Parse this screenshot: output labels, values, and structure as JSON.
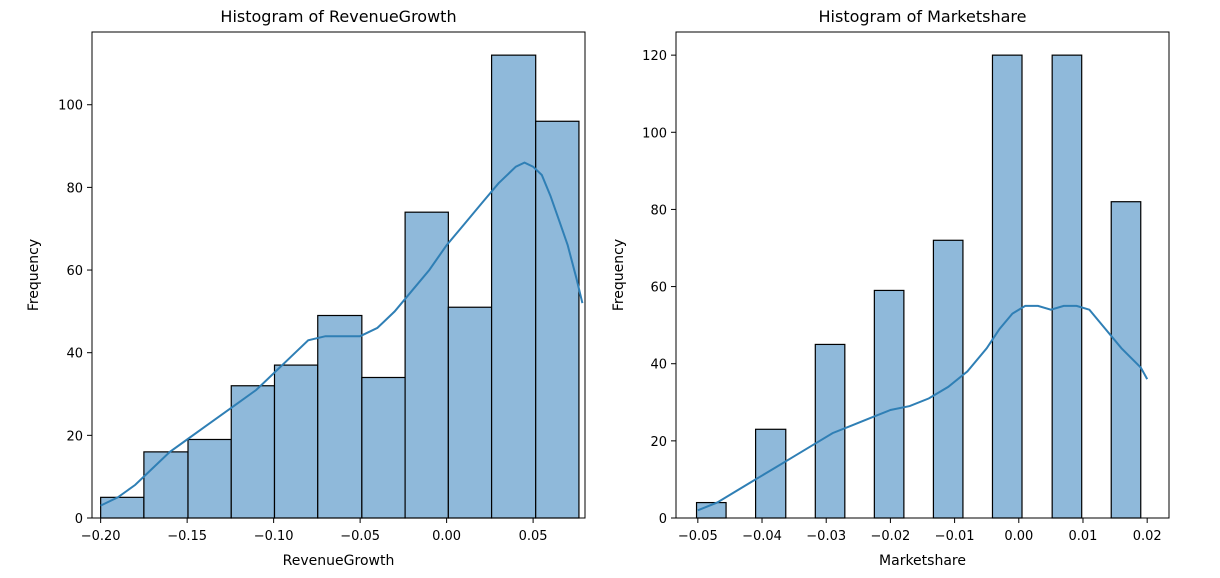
{
  "chart_data": [
    {
      "type": "bar",
      "title": "Histogram of RevenueGrowth",
      "xlabel": "RevenueGrowth",
      "ylabel": "Frequency",
      "xlim": [
        -0.205,
        0.08
      ],
      "ylim": [
        0,
        117.6
      ],
      "xticks": [
        {
          "value": -0.2,
          "label": "−0.20"
        },
        {
          "value": -0.15,
          "label": "−0.15"
        },
        {
          "value": -0.1,
          "label": "−0.10"
        },
        {
          "value": -0.05,
          "label": "−0.05"
        },
        {
          "value": 0.0,
          "label": "0.00"
        },
        {
          "value": 0.05,
          "label": "0.05"
        }
      ],
      "yticks": [
        {
          "value": 0,
          "label": "0"
        },
        {
          "value": 20,
          "label": "20"
        },
        {
          "value": 40,
          "label": "40"
        },
        {
          "value": 60,
          "label": "60"
        },
        {
          "value": 80,
          "label": "80"
        },
        {
          "value": 100,
          "label": "100"
        }
      ],
      "bins": [
        {
          "x0": -0.2,
          "x1": -0.175,
          "count": 5
        },
        {
          "x0": -0.175,
          "x1": -0.1495,
          "count": 16
        },
        {
          "x0": -0.1495,
          "x1": -0.1245,
          "count": 19
        },
        {
          "x0": -0.1245,
          "x1": -0.0995,
          "count": 32
        },
        {
          "x0": -0.0995,
          "x1": -0.0745,
          "count": 37
        },
        {
          "x0": -0.0745,
          "x1": -0.049,
          "count": 49
        },
        {
          "x0": -0.049,
          "x1": -0.024,
          "count": 34
        },
        {
          "x0": -0.024,
          "x1": 0.001,
          "count": 74
        },
        {
          "x0": 0.001,
          "x1": 0.026,
          "count": 51
        },
        {
          "x0": 0.026,
          "x1": 0.0515,
          "count": 112
        },
        {
          "x0": 0.0515,
          "x1": 0.0765,
          "count": 96
        }
      ],
      "kde": {
        "x": [
          -0.2,
          -0.19,
          -0.18,
          -0.17,
          -0.16,
          -0.15,
          -0.14,
          -0.13,
          -0.12,
          -0.11,
          -0.1,
          -0.09,
          -0.08,
          -0.07,
          -0.06,
          -0.05,
          -0.04,
          -0.03,
          -0.02,
          -0.01,
          0.0,
          0.01,
          0.02,
          0.03,
          0.04,
          0.045,
          0.05,
          0.055,
          0.06,
          0.065,
          0.07,
          0.075,
          0.0785
        ],
        "y": [
          3,
          5,
          8,
          12,
          16,
          19,
          22,
          25,
          28,
          31,
          35,
          39,
          43,
          44,
          44,
          44,
          46,
          50,
          55,
          60,
          66,
          71,
          76,
          81,
          85,
          86,
          85,
          83,
          78,
          72,
          66,
          58,
          52
        ]
      }
    },
    {
      "type": "bar",
      "title": "Histogram of Marketshare",
      "xlabel": "Marketshare",
      "ylabel": "Frequency",
      "xlim": [
        -0.0534,
        0.0234
      ],
      "ylim": [
        0,
        126
      ],
      "xticks": [
        {
          "value": -0.05,
          "label": "−0.05"
        },
        {
          "value": -0.04,
          "label": "−0.04"
        },
        {
          "value": -0.03,
          "label": "−0.03"
        },
        {
          "value": -0.02,
          "label": "−0.02"
        },
        {
          "value": -0.01,
          "label": "−0.01"
        },
        {
          "value": 0.0,
          "label": "0.00"
        },
        {
          "value": 0.01,
          "label": "0.01"
        },
        {
          "value": 0.02,
          "label": "0.02"
        }
      ],
      "yticks": [
        {
          "value": 0,
          "label": "0"
        },
        {
          "value": 20,
          "label": "20"
        },
        {
          "value": 40,
          "label": "40"
        },
        {
          "value": 60,
          "label": "60"
        },
        {
          "value": 80,
          "label": "80"
        },
        {
          "value": 100,
          "label": "100"
        },
        {
          "value": 120,
          "label": "120"
        }
      ],
      "bins": [
        {
          "x0": -0.0502,
          "x1": -0.0456,
          "count": 4
        },
        {
          "x0": -0.0456,
          "x1": -0.041,
          "count": 0
        },
        {
          "x0": -0.041,
          "x1": -0.0363,
          "count": 23
        },
        {
          "x0": -0.0363,
          "x1": -0.0317,
          "count": 0
        },
        {
          "x0": -0.0317,
          "x1": -0.0271,
          "count": 45
        },
        {
          "x0": -0.0271,
          "x1": -0.0225,
          "count": 0
        },
        {
          "x0": -0.0225,
          "x1": -0.0179,
          "count": 59
        },
        {
          "x0": -0.0179,
          "x1": -0.0133,
          "count": 0
        },
        {
          "x0": -0.0133,
          "x1": -0.0087,
          "count": 72
        },
        {
          "x0": -0.0087,
          "x1": -0.0041,
          "count": 0
        },
        {
          "x0": -0.0041,
          "x1": 0.0005,
          "count": 120
        },
        {
          "x0": 0.0005,
          "x1": 0.0052,
          "count": 0
        },
        {
          "x0": 0.0052,
          "x1": 0.0098,
          "count": 120
        },
        {
          "x0": 0.0098,
          "x1": 0.0144,
          "count": 0
        },
        {
          "x0": 0.0144,
          "x1": 0.019,
          "count": 82
        }
      ],
      "kde": {
        "x": [
          -0.05,
          -0.047,
          -0.044,
          -0.041,
          -0.038,
          -0.035,
          -0.032,
          -0.029,
          -0.026,
          -0.023,
          -0.02,
          -0.017,
          -0.014,
          -0.011,
          -0.008,
          -0.005,
          -0.003,
          -0.001,
          0.001,
          0.003,
          0.005,
          0.007,
          0.009,
          0.011,
          0.013,
          0.016,
          0.019,
          0.02
        ],
        "y": [
          2,
          4,
          7,
          10,
          13,
          16,
          19,
          22,
          24,
          26,
          28,
          29,
          31,
          34,
          38,
          44,
          49,
          53,
          55,
          55,
          54,
          55,
          55,
          54,
          50,
          44,
          39,
          36
        ]
      }
    }
  ]
}
